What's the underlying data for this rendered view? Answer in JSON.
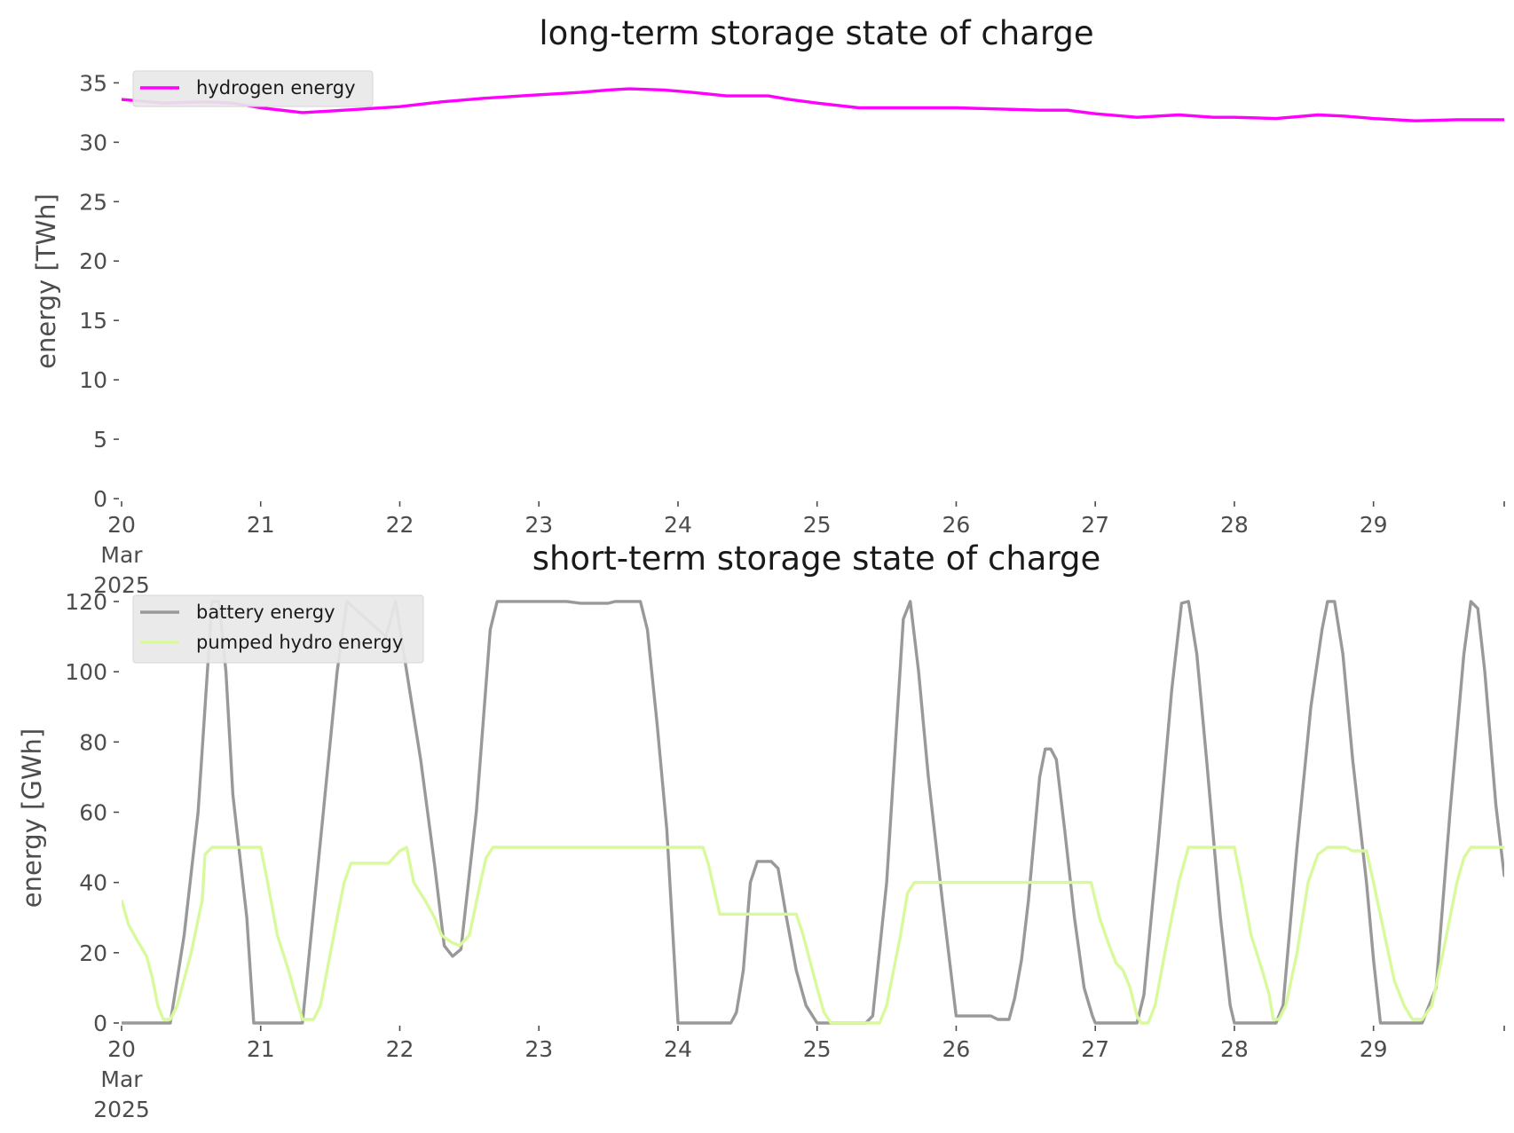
{
  "chart_data": [
    {
      "type": "line",
      "title": "long-term storage state of charge",
      "xlabel": "",
      "ylabel": "energy [TWh]",
      "ylim": [
        0,
        36
      ],
      "xlim": [
        0,
        9.94
      ],
      "x_unit": "days after 20 Mar 2025 00:00",
      "x_ticks": [
        {
          "value": 0,
          "lines": [
            "20",
            "Mar",
            "2025"
          ]
        },
        {
          "value": 1,
          "lines": [
            "21"
          ]
        },
        {
          "value": 2,
          "lines": [
            "22"
          ]
        },
        {
          "value": 3,
          "lines": [
            "23"
          ]
        },
        {
          "value": 4,
          "lines": [
            "24"
          ]
        },
        {
          "value": 5,
          "lines": [
            "25"
          ]
        },
        {
          "value": 6,
          "lines": [
            "26"
          ]
        },
        {
          "value": 7,
          "lines": [
            "27"
          ]
        },
        {
          "value": 8,
          "lines": [
            "28"
          ]
        },
        {
          "value": 9,
          "lines": [
            "29"
          ]
        }
      ],
      "y_ticks": [
        0,
        5,
        10,
        15,
        20,
        25,
        30,
        35
      ],
      "grid": false,
      "legend_position": "top-left",
      "series": [
        {
          "name": "hydrogen energy",
          "color": "#ff00ff",
          "points": [
            [
              0,
              33.6
            ],
            [
              0.3,
              33.3
            ],
            [
              0.6,
              33.4
            ],
            [
              0.8,
              33.3
            ],
            [
              1.0,
              32.9
            ],
            [
              1.3,
              32.5
            ],
            [
              1.6,
              32.7
            ],
            [
              2.0,
              33.0
            ],
            [
              2.3,
              33.4
            ],
            [
              2.6,
              33.7
            ],
            [
              3.0,
              34.0
            ],
            [
              3.3,
              34.2
            ],
            [
              3.5,
              34.4
            ],
            [
              3.65,
              34.5
            ],
            [
              3.9,
              34.4
            ],
            [
              4.1,
              34.2
            ],
            [
              4.35,
              33.9
            ],
            [
              4.65,
              33.9
            ],
            [
              4.8,
              33.6
            ],
            [
              5.0,
              33.3
            ],
            [
              5.3,
              32.9
            ],
            [
              5.6,
              32.9
            ],
            [
              6.0,
              32.9
            ],
            [
              6.3,
              32.8
            ],
            [
              6.6,
              32.7
            ],
            [
              6.8,
              32.7
            ],
            [
              7.0,
              32.4
            ],
            [
              7.3,
              32.1
            ],
            [
              7.6,
              32.3
            ],
            [
              7.85,
              32.1
            ],
            [
              8.0,
              32.1
            ],
            [
              8.3,
              32.0
            ],
            [
              8.6,
              32.3
            ],
            [
              8.8,
              32.2
            ],
            [
              9.0,
              32.0
            ],
            [
              9.3,
              31.8
            ],
            [
              9.6,
              31.9
            ],
            [
              9.94,
              31.9
            ]
          ]
        }
      ]
    },
    {
      "type": "line",
      "title": "short-term storage state of charge",
      "xlabel": "",
      "ylabel": "energy [GWh]",
      "ylim": [
        0,
        122
      ],
      "xlim": [
        0,
        9.94
      ],
      "x_unit": "days after 20 Mar 2025 00:00",
      "x_ticks": [
        {
          "value": 0,
          "lines": [
            "20",
            "Mar",
            "2025"
          ]
        },
        {
          "value": 1,
          "lines": [
            "21"
          ]
        },
        {
          "value": 2,
          "lines": [
            "22"
          ]
        },
        {
          "value": 3,
          "lines": [
            "23"
          ]
        },
        {
          "value": 4,
          "lines": [
            "24"
          ]
        },
        {
          "value": 5,
          "lines": [
            "25"
          ]
        },
        {
          "value": 6,
          "lines": [
            "26"
          ]
        },
        {
          "value": 7,
          "lines": [
            "27"
          ]
        },
        {
          "value": 8,
          "lines": [
            "28"
          ]
        },
        {
          "value": 9,
          "lines": [
            "29"
          ]
        }
      ],
      "y_ticks": [
        0,
        20,
        40,
        60,
        80,
        100,
        120
      ],
      "grid": false,
      "legend_position": "top-left",
      "series": [
        {
          "name": "battery energy",
          "color": "#999999",
          "points": [
            [
              0,
              0
            ],
            [
              0.35,
              0
            ],
            [
              0.45,
              25
            ],
            [
              0.55,
              60
            ],
            [
              0.65,
              120
            ],
            [
              0.7,
              120
            ],
            [
              0.75,
              100
            ],
            [
              0.8,
              65
            ],
            [
              0.9,
              30
            ],
            [
              0.95,
              0
            ],
            [
              1.3,
              0
            ],
            [
              1.35,
              20
            ],
            [
              1.45,
              60
            ],
            [
              1.55,
              100
            ],
            [
              1.62,
              120
            ],
            [
              1.9,
              110
            ],
            [
              1.97,
              120
            ],
            [
              2.05,
              100
            ],
            [
              2.15,
              75
            ],
            [
              2.25,
              45
            ],
            [
              2.32,
              22
            ],
            [
              2.38,
              19
            ],
            [
              2.44,
              21
            ],
            [
              2.55,
              60
            ],
            [
              2.65,
              112
            ],
            [
              2.7,
              120
            ],
            [
              3.0,
              120
            ],
            [
              3.2,
              120
            ],
            [
              3.3,
              119.5
            ],
            [
              3.5,
              119.5
            ],
            [
              3.55,
              120
            ],
            [
              3.73,
              120
            ],
            [
              3.78,
              112
            ],
            [
              3.85,
              85
            ],
            [
              3.92,
              55
            ],
            [
              4.0,
              0
            ],
            [
              4.38,
              0
            ],
            [
              4.42,
              3
            ],
            [
              4.47,
              15
            ],
            [
              4.52,
              40
            ],
            [
              4.57,
              46
            ],
            [
              4.67,
              46
            ],
            [
              4.72,
              44
            ],
            [
              4.78,
              30
            ],
            [
              4.85,
              15
            ],
            [
              4.92,
              5
            ],
            [
              5.0,
              0
            ],
            [
              5.35,
              0
            ],
            [
              5.4,
              2
            ],
            [
              5.5,
              40
            ],
            [
              5.62,
              115
            ],
            [
              5.67,
              120
            ],
            [
              5.73,
              100
            ],
            [
              5.8,
              70
            ],
            [
              5.9,
              35
            ],
            [
              6.0,
              2
            ],
            [
              6.25,
              2
            ],
            [
              6.3,
              1
            ],
            [
              6.38,
              1
            ],
            [
              6.42,
              7
            ],
            [
              6.47,
              18
            ],
            [
              6.52,
              35
            ],
            [
              6.6,
              70
            ],
            [
              6.64,
              78
            ],
            [
              6.68,
              78
            ],
            [
              6.72,
              75
            ],
            [
              6.78,
              55
            ],
            [
              6.85,
              30
            ],
            [
              6.92,
              10
            ],
            [
              6.98,
              2
            ],
            [
              7.0,
              0
            ],
            [
              7.3,
              0
            ],
            [
              7.35,
              8
            ],
            [
              7.45,
              50
            ],
            [
              7.55,
              95
            ],
            [
              7.62,
              119.5
            ],
            [
              7.67,
              120
            ],
            [
              7.73,
              105
            ],
            [
              7.8,
              75
            ],
            [
              7.9,
              30
            ],
            [
              7.97,
              5
            ],
            [
              8.0,
              0
            ],
            [
              8.3,
              0
            ],
            [
              8.35,
              5
            ],
            [
              8.45,
              50
            ],
            [
              8.55,
              90
            ],
            [
              8.63,
              112
            ],
            [
              8.67,
              120
            ],
            [
              8.72,
              120
            ],
            [
              8.78,
              105
            ],
            [
              8.85,
              75
            ],
            [
              8.95,
              40
            ],
            [
              9.0,
              18
            ],
            [
              9.05,
              0
            ],
            [
              9.35,
              0
            ],
            [
              9.45,
              10
            ],
            [
              9.55,
              60
            ],
            [
              9.65,
              105
            ],
            [
              9.7,
              120
            ],
            [
              9.75,
              118
            ],
            [
              9.8,
              100
            ],
            [
              9.88,
              62
            ],
            [
              9.94,
              42
            ],
            [
              10.0,
              40
            ]
          ]
        },
        {
          "name": "pumped hydro energy",
          "color": "#d9f99d",
          "points": [
            [
              0,
              35
            ],
            [
              0.05,
              28
            ],
            [
              0.12,
              23
            ],
            [
              0.18,
              19
            ],
            [
              0.22,
              13
            ],
            [
              0.26,
              5
            ],
            [
              0.3,
              1
            ],
            [
              0.35,
              1
            ],
            [
              0.4,
              5
            ],
            [
              0.5,
              20
            ],
            [
              0.58,
              35
            ],
            [
              0.6,
              48
            ],
            [
              0.65,
              50
            ],
            [
              1.0,
              50
            ],
            [
              1.05,
              40
            ],
            [
              1.12,
              25
            ],
            [
              1.2,
              15
            ],
            [
              1.27,
              5
            ],
            [
              1.3,
              1
            ],
            [
              1.38,
              1
            ],
            [
              1.43,
              5
            ],
            [
              1.55,
              30
            ],
            [
              1.6,
              40
            ],
            [
              1.65,
              45.5
            ],
            [
              1.92,
              45.5
            ],
            [
              2.0,
              49
            ],
            [
              2.05,
              50
            ],
            [
              2.1,
              40
            ],
            [
              2.18,
              35
            ],
            [
              2.25,
              30
            ],
            [
              2.3,
              25
            ],
            [
              2.37,
              23
            ],
            [
              2.43,
              22
            ],
            [
              2.5,
              25
            ],
            [
              2.58,
              40
            ],
            [
              2.62,
              47
            ],
            [
              2.67,
              50
            ],
            [
              3.0,
              50
            ],
            [
              3.5,
              50
            ],
            [
              4.0,
              50
            ],
            [
              4.18,
              50
            ],
            [
              4.22,
              45
            ],
            [
              4.3,
              31
            ],
            [
              4.85,
              31
            ],
            [
              4.9,
              25
            ],
            [
              5.0,
              10
            ],
            [
              5.05,
              3
            ],
            [
              5.1,
              0
            ],
            [
              5.45,
              0
            ],
            [
              5.5,
              5
            ],
            [
              5.6,
              25
            ],
            [
              5.65,
              37
            ],
            [
              5.7,
              40
            ],
            [
              6.0,
              40
            ],
            [
              6.5,
              40
            ],
            [
              6.97,
              40
            ],
            [
              7.03,
              30
            ],
            [
              7.1,
              22
            ],
            [
              7.15,
              17
            ],
            [
              7.2,
              15
            ],
            [
              7.25,
              10
            ],
            [
              7.3,
              2
            ],
            [
              7.33,
              0
            ],
            [
              7.38,
              0
            ],
            [
              7.43,
              5
            ],
            [
              7.5,
              20
            ],
            [
              7.6,
              40
            ],
            [
              7.67,
              50
            ],
            [
              8.0,
              50
            ],
            [
              8.05,
              40
            ],
            [
              8.12,
              25
            ],
            [
              8.2,
              15
            ],
            [
              8.25,
              8
            ],
            [
              8.28,
              1
            ],
            [
              8.32,
              1
            ],
            [
              8.37,
              5
            ],
            [
              8.45,
              20
            ],
            [
              8.53,
              40
            ],
            [
              8.6,
              48
            ],
            [
              8.67,
              50
            ],
            [
              8.8,
              50
            ],
            [
              8.85,
              49
            ],
            [
              8.95,
              49
            ],
            [
              9.0,
              40
            ],
            [
              9.08,
              25
            ],
            [
              9.15,
              12
            ],
            [
              9.22,
              5
            ],
            [
              9.28,
              1
            ],
            [
              9.35,
              1
            ],
            [
              9.42,
              5
            ],
            [
              9.5,
              20
            ],
            [
              9.6,
              40
            ],
            [
              9.65,
              47
            ],
            [
              9.7,
              50
            ],
            [
              10.0,
              50
            ]
          ]
        }
      ]
    }
  ]
}
